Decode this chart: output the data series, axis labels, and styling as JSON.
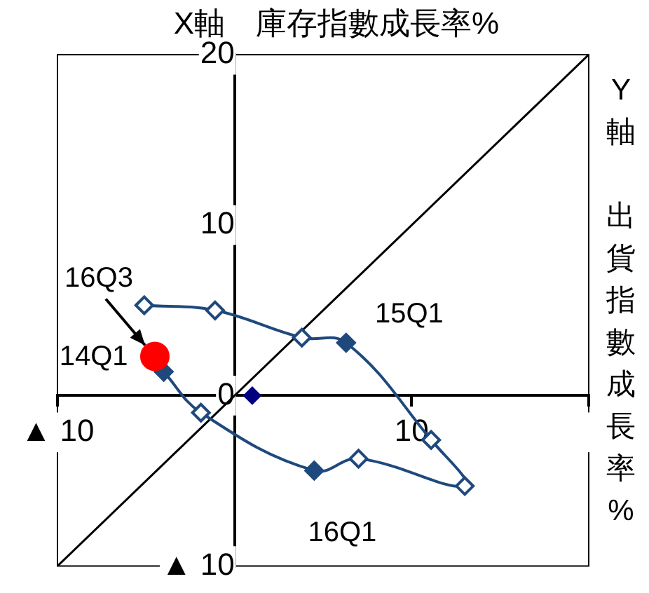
{
  "chart_data": {
    "type": "scatter",
    "xlabel": "X軸　庫存指數成長率%",
    "ylabel": "Y軸出貨指數成長率%",
    "xlim": [
      -10,
      20
    ],
    "ylim": [
      -10,
      20
    ],
    "xticks": [
      {
        "value": -10,
        "label": "▲ 10"
      },
      {
        "value": 0,
        "label": null
      },
      10,
      {
        "value": 20,
        "label": null
      }
    ],
    "yticks": [
      {
        "value": -10,
        "label": "▲ 10"
      },
      0,
      10,
      20
    ],
    "grid": false,
    "legend": false,
    "marker": "diamond",
    "series": [
      {
        "type": "line",
        "color": "#000000",
        "marker": "none",
        "x": [
          -10,
          20
        ],
        "values": [
          -10,
          20
        ]
      },
      {
        "type": "line",
        "color": "#1f497d",
        "x": [
          -4.0,
          -1.9,
          4.5,
          7.0,
          13.0,
          11.1,
          6.3,
          3.8,
          -1.1,
          -5.1
        ],
        "values": [
          1.4,
          -1.0,
          -4.4,
          -3.7,
          -5.3,
          -2.6,
          3.1,
          3.4,
          5.0,
          5.3
        ],
        "colors": [
          "#1f497d",
          "#ffffff",
          "#1f497d",
          "#ffffff",
          "#ffffff",
          "#ffffff",
          "#1f497d",
          "#ffffff",
          "#ffffff",
          "#ffffff"
        ]
      },
      {
        "color": "#000080",
        "x": [
          1.0
        ],
        "values": [
          0
        ]
      },
      {
        "color": "#ff0000",
        "marker": "circle",
        "x": [
          -4.5
        ],
        "values": [
          2.3
        ]
      }
    ],
    "annotations": [
      {
        "text": "16Q3",
        "x": -4.5,
        "y": 2.3
      },
      {
        "text": "14Q1",
        "x": -4.0,
        "y": 1.4
      },
      {
        "text": "15Q1",
        "x": 6.3,
        "y": 3.1
      },
      {
        "text": "16Q1",
        "x": 4.5,
        "y": -4.4
      }
    ]
  }
}
